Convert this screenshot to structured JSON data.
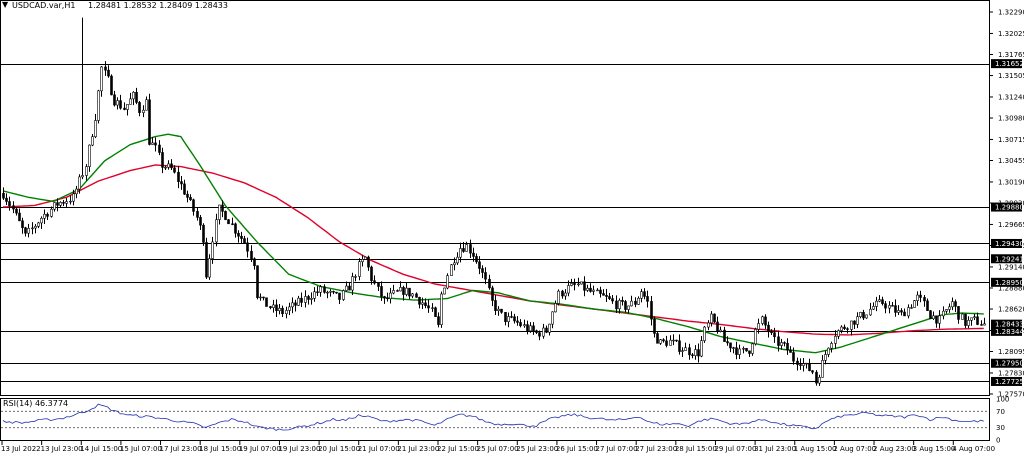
{
  "header": {
    "symbol": "USDCAD.var,H1",
    "ohlc": "1.28481 1.28532 1.28409 1.28433"
  },
  "indicator": {
    "label": "RSI(14) 46.3774",
    "levels": [
      "100",
      "70",
      "30",
      "0"
    ]
  },
  "colors": {
    "candle": "#000000",
    "ma_fast": "#008000",
    "ma_slow": "#e0002a",
    "rsi": "#1f2fb0",
    "level_line": "#000000"
  },
  "chart_data": {
    "type": "candlestick",
    "title": "USDCAD.var,H1",
    "price_axis": {
      "ylim": [
        1.2757,
        1.3229
      ],
      "ticks": [
        "1.32290",
        "1.32025",
        "1.31765",
        "1.31505",
        "1.31240",
        "1.30980",
        "1.30715",
        "1.30455",
        "1.30190",
        "1.29930",
        "1.29665",
        "1.29405",
        "1.29140",
        "1.28880",
        "1.28620",
        "1.28355",
        "1.28095",
        "1.27830",
        "1.27570"
      ]
    },
    "level_labels": [
      {
        "value": 1.31652,
        "label": "1.31652"
      },
      {
        "value": 1.2988,
        "label": "1.29880"
      },
      {
        "value": 1.2943,
        "label": "1.29430"
      },
      {
        "value": 1.29241,
        "label": "1.29241"
      },
      {
        "value": 1.2895,
        "label": "1.28950"
      },
      {
        "value": 1.28433,
        "label": "1.28433"
      },
      {
        "value": 1.28344,
        "label": "1.28344"
      },
      {
        "value": 1.2795,
        "label": "1.27950"
      },
      {
        "value": 1.27725,
        "label": "1.27725"
      }
    ],
    "time_labels": [
      "13 Jul 2022",
      "13 Jul 23:00",
      "14 Jul 15:00",
      "15 Jul 07:00",
      "17 Jul 23:00",
      "18 Jul 15:00",
      "19 Jul 07:00",
      "19 Jul 23:00",
      "20 Jul 15:00",
      "21 Jul 07:00",
      "21 Jul 23:00",
      "22 Jul 15:00",
      "25 Jul 07:00",
      "25 Jul 23:00",
      "26 Jul 15:00",
      "27 Jul 07:00",
      "27 Jul 23:00",
      "28 Jul 15:00",
      "29 Jul 07:00",
      "31 Jul 23:00",
      "1 Aug 15:00",
      "2 Aug 07:00",
      "2 Aug 23:00",
      "3 Aug 15:00",
      "4 Aug 07:00"
    ],
    "close_path": [
      [
        0,
        1.3005
      ],
      [
        3,
        1.2985
      ],
      [
        7,
        1.2952
      ],
      [
        12,
        1.2975
      ],
      [
        17,
        1.2992
      ],
      [
        22,
        1.3
      ],
      [
        26,
        1.304
      ],
      [
        29,
        1.31
      ],
      [
        31,
        1.316
      ],
      [
        33,
        1.3145
      ],
      [
        35,
        1.312
      ],
      [
        38,
        1.311
      ],
      [
        41,
        1.3125
      ],
      [
        43,
        1.3108
      ],
      [
        45,
        1.3118
      ],
      [
        46,
        1.307
      ],
      [
        48,
        1.306
      ],
      [
        50,
        1.304
      ],
      [
        53,
        1.3035
      ],
      [
        56,
        1.3015
      ],
      [
        58,
        1.3
      ],
      [
        61,
        1.2975
      ],
      [
        63,
        1.295
      ],
      [
        64,
        1.2905
      ],
      [
        66,
        1.295
      ],
      [
        68,
        1.2985
      ],
      [
        70,
        1.2978
      ],
      [
        73,
        1.296
      ],
      [
        76,
        1.2945
      ],
      [
        79,
        1.292
      ],
      [
        80,
        1.288
      ],
      [
        82,
        1.287
      ],
      [
        85,
        1.2862
      ],
      [
        88,
        1.2858
      ],
      [
        91,
        1.2865
      ],
      [
        94,
        1.2872
      ],
      [
        97,
        1.288
      ],
      [
        100,
        1.2885
      ],
      [
        103,
        1.288
      ],
      [
        106,
        1.2875
      ],
      [
        109,
        1.289
      ],
      [
        112,
        1.2915
      ],
      [
        114,
        1.2925
      ],
      [
        116,
        1.29
      ],
      [
        118,
        1.2885
      ],
      [
        120,
        1.2872
      ],
      [
        123,
        1.288
      ],
      [
        126,
        1.2885
      ],
      [
        129,
        1.288
      ],
      [
        132,
        1.287
      ],
      [
        135,
        1.2858
      ],
      [
        137,
        1.284
      ],
      [
        138,
        1.288
      ],
      [
        140,
        1.2905
      ],
      [
        142,
        1.2925
      ],
      [
        144,
        1.2938
      ],
      [
        146,
        1.294
      ],
      [
        148,
        1.293
      ],
      [
        150,
        1.2915
      ],
      [
        152,
        1.2895
      ],
      [
        154,
        1.287
      ],
      [
        156,
        1.2858
      ],
      [
        158,
        1.285
      ],
      [
        160,
        1.2848
      ],
      [
        162,
        1.2845
      ],
      [
        165,
        1.2838
      ],
      [
        168,
        1.2832
      ],
      [
        171,
        1.2835
      ],
      [
        173,
        1.286
      ],
      [
        175,
        1.288
      ],
      [
        178,
        1.2888
      ],
      [
        181,
        1.2892
      ],
      [
        184,
        1.2885
      ],
      [
        187,
        1.288
      ],
      [
        190,
        1.2875
      ],
      [
        193,
        1.2868
      ],
      [
        196,
        1.2865
      ],
      [
        199,
        1.287
      ],
      [
        201,
        1.2885
      ],
      [
        203,
        1.287
      ],
      [
        205,
        1.283
      ],
      [
        207,
        1.282
      ],
      [
        210,
        1.2822
      ],
      [
        213,
        1.2815
      ],
      [
        216,
        1.281
      ],
      [
        219,
        1.2808
      ],
      [
        221,
        1.2835
      ],
      [
        223,
        1.285
      ],
      [
        225,
        1.2838
      ],
      [
        227,
        1.2822
      ],
      [
        230,
        1.2815
      ],
      [
        232,
        1.2808
      ],
      [
        235,
        1.2812
      ],
      [
        237,
        1.2835
      ],
      [
        239,
        1.2848
      ],
      [
        241,
        1.2835
      ],
      [
        243,
        1.2822
      ],
      [
        245,
        1.2818
      ],
      [
        247,
        1.2812
      ],
      [
        249,
        1.28
      ],
      [
        251,
        1.2798
      ],
      [
        253,
        1.279
      ],
      [
        255,
        1.2785
      ],
      [
        256,
        1.2772
      ],
      [
        258,
        1.2795
      ],
      [
        260,
        1.2818
      ],
      [
        262,
        1.2832
      ],
      [
        265,
        1.284
      ],
      [
        268,
        1.2848
      ],
      [
        271,
        1.2855
      ],
      [
        274,
        1.2865
      ],
      [
        277,
        1.287
      ],
      [
        280,
        1.2862
      ],
      [
        283,
        1.2855
      ],
      [
        286,
        1.2868
      ],
      [
        288,
        1.2876
      ],
      [
        290,
        1.2868
      ],
      [
        292,
        1.2855
      ],
      [
        295,
        1.2848
      ],
      [
        297,
        1.286
      ],
      [
        299,
        1.287
      ],
      [
        301,
        1.2855
      ],
      [
        303,
        1.2845
      ],
      [
        306,
        1.2848
      ],
      [
        309,
        1.2843
      ]
    ],
    "ma_fast_path": [
      [
        0,
        1.3008
      ],
      [
        8,
        1.3
      ],
      [
        16,
        1.2995
      ],
      [
        24,
        1.301
      ],
      [
        32,
        1.3045
      ],
      [
        40,
        1.3065
      ],
      [
        48,
        1.3075
      ],
      [
        52,
        1.3078
      ],
      [
        56,
        1.3075
      ],
      [
        62,
        1.304
      ],
      [
        70,
        1.299
      ],
      [
        80,
        1.2945
      ],
      [
        90,
        1.2905
      ],
      [
        100,
        1.289
      ],
      [
        110,
        1.2882
      ],
      [
        120,
        1.2876
      ],
      [
        130,
        1.2873
      ],
      [
        140,
        1.2875
      ],
      [
        148,
        1.2885
      ],
      [
        156,
        1.2882
      ],
      [
        166,
        1.2872
      ],
      [
        176,
        1.2868
      ],
      [
        186,
        1.2862
      ],
      [
        196,
        1.2858
      ],
      [
        206,
        1.285
      ],
      [
        216,
        1.284
      ],
      [
        226,
        1.2828
      ],
      [
        236,
        1.282
      ],
      [
        246,
        1.2812
      ],
      [
        256,
        1.2808
      ],
      [
        264,
        1.2815
      ],
      [
        272,
        1.2825
      ],
      [
        280,
        1.2835
      ],
      [
        288,
        1.2845
      ],
      [
        296,
        1.2855
      ],
      [
        302,
        1.2857
      ],
      [
        309,
        1.2856
      ]
    ],
    "ma_slow_path": [
      [
        0,
        1.2988
      ],
      [
        10,
        1.299
      ],
      [
        20,
        1.3
      ],
      [
        30,
        1.302
      ],
      [
        40,
        1.3033
      ],
      [
        48,
        1.304
      ],
      [
        56,
        1.3038
      ],
      [
        66,
        1.303
      ],
      [
        76,
        1.3018
      ],
      [
        86,
        1.3
      ],
      [
        96,
        1.2975
      ],
      [
        106,
        1.2945
      ],
      [
        116,
        1.2922
      ],
      [
        126,
        1.2905
      ],
      [
        136,
        1.2893
      ],
      [
        146,
        1.2886
      ],
      [
        156,
        1.2879
      ],
      [
        166,
        1.2872
      ],
      [
        176,
        1.2867
      ],
      [
        186,
        1.2862
      ],
      [
        196,
        1.2857
      ],
      [
        206,
        1.2852
      ],
      [
        216,
        1.2847
      ],
      [
        226,
        1.2843
      ],
      [
        236,
        1.2838
      ],
      [
        246,
        1.2834
      ],
      [
        256,
        1.2831
      ],
      [
        266,
        1.283
      ],
      [
        276,
        1.2832
      ],
      [
        286,
        1.2835
      ],
      [
        296,
        1.2837
      ],
      [
        309,
        1.2838
      ]
    ],
    "rsi_path": [
      [
        0,
        45
      ],
      [
        6,
        42
      ],
      [
        12,
        48
      ],
      [
        18,
        52
      ],
      [
        22,
        60
      ],
      [
        26,
        70
      ],
      [
        30,
        85
      ],
      [
        32,
        82
      ],
      [
        36,
        68
      ],
      [
        40,
        60
      ],
      [
        44,
        58
      ],
      [
        48,
        55
      ],
      [
        52,
        50
      ],
      [
        56,
        45
      ],
      [
        60,
        40
      ],
      [
        64,
        30
      ],
      [
        68,
        42
      ],
      [
        72,
        50
      ],
      [
        76,
        45
      ],
      [
        80,
        32
      ],
      [
        84,
        28
      ],
      [
        88,
        25
      ],
      [
        92,
        30
      ],
      [
        96,
        35
      ],
      [
        100,
        42
      ],
      [
        104,
        50
      ],
      [
        108,
        48
      ],
      [
        112,
        60
      ],
      [
        116,
        55
      ],
      [
        120,
        45
      ],
      [
        124,
        48
      ],
      [
        128,
        50
      ],
      [
        132,
        45
      ],
      [
        136,
        35
      ],
      [
        140,
        50
      ],
      [
        144,
        62
      ],
      [
        148,
        58
      ],
      [
        152,
        45
      ],
      [
        156,
        38
      ],
      [
        160,
        40
      ],
      [
        164,
        36
      ],
      [
        168,
        35
      ],
      [
        172,
        50
      ],
      [
        176,
        58
      ],
      [
        180,
        62
      ],
      [
        184,
        55
      ],
      [
        188,
        52
      ],
      [
        192,
        48
      ],
      [
        196,
        50
      ],
      [
        200,
        58
      ],
      [
        204,
        42
      ],
      [
        208,
        38
      ],
      [
        212,
        40
      ],
      [
        216,
        35
      ],
      [
        220,
        48
      ],
      [
        224,
        52
      ],
      [
        228,
        42
      ],
      [
        232,
        38
      ],
      [
        236,
        45
      ],
      [
        240,
        50
      ],
      [
        244,
        40
      ],
      [
        248,
        36
      ],
      [
        252,
        32
      ],
      [
        256,
        28
      ],
      [
        260,
        48
      ],
      [
        264,
        58
      ],
      [
        268,
        62
      ],
      [
        272,
        66
      ],
      [
        276,
        60
      ],
      [
        280,
        58
      ],
      [
        284,
        56
      ],
      [
        288,
        62
      ],
      [
        292,
        50
      ],
      [
        296,
        56
      ],
      [
        300,
        48
      ],
      [
        304,
        45
      ],
      [
        309,
        46
      ]
    ]
  }
}
